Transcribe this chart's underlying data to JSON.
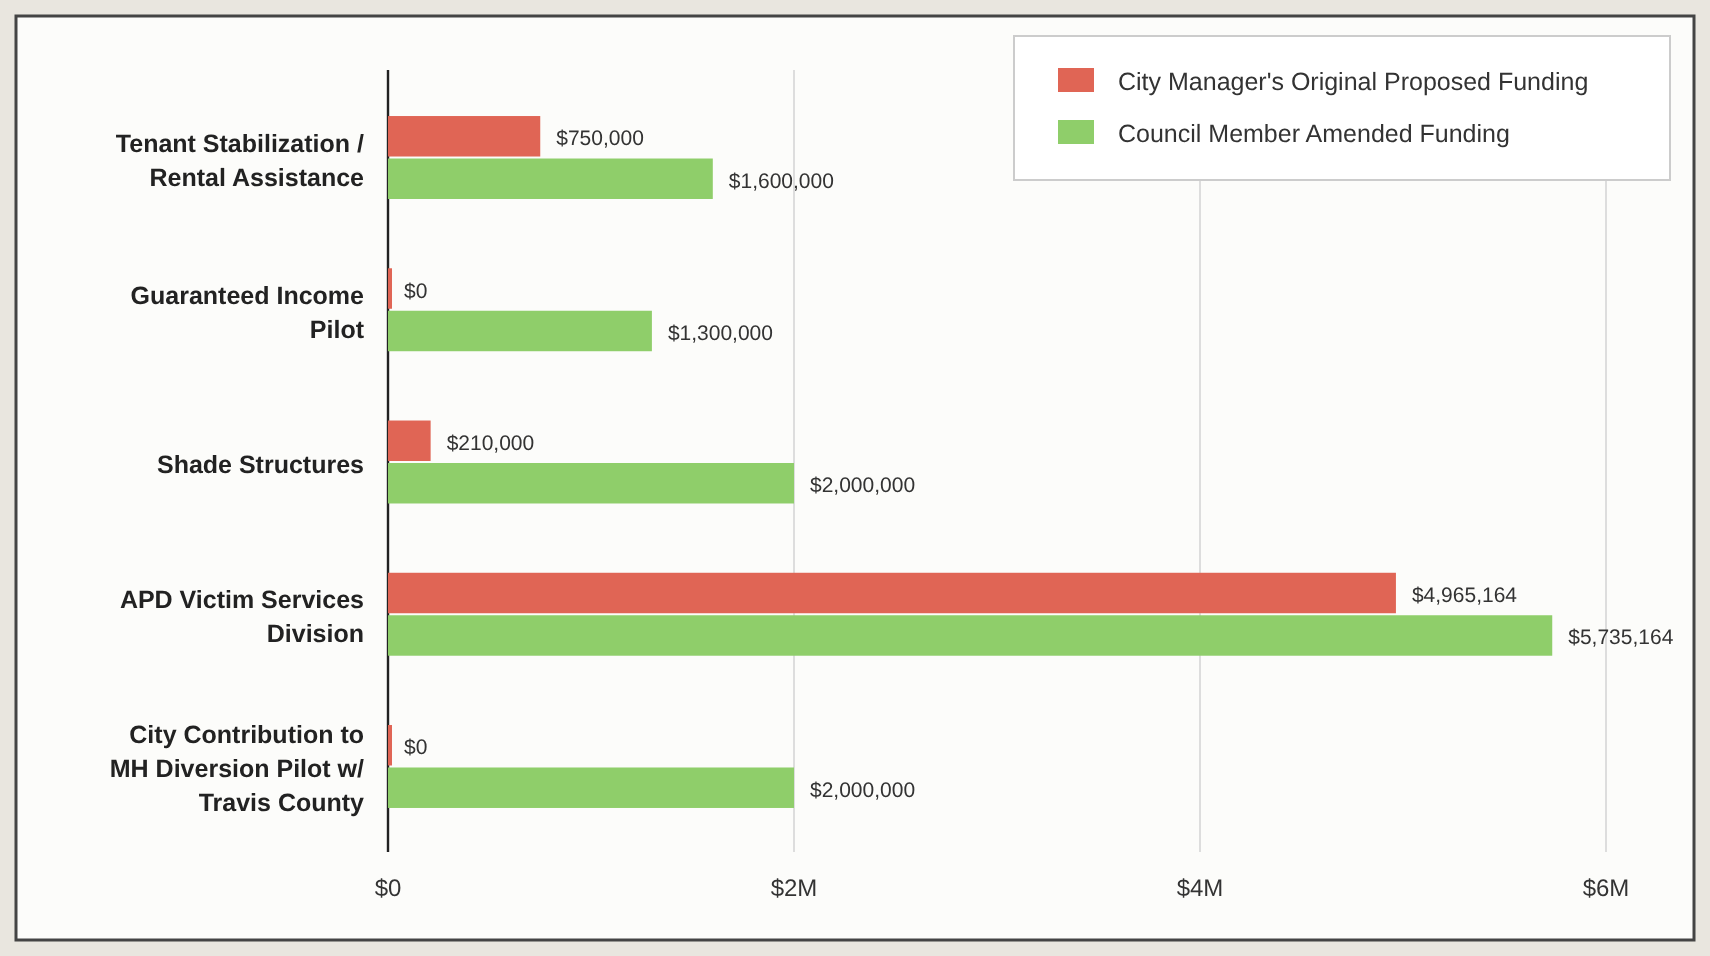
{
  "chart_data": {
    "type": "bar",
    "orientation": "horizontal",
    "categories": [
      "Tenant Stabilization / Rental Assistance",
      "Guaranteed Income Pilot",
      "Shade Structures",
      "APD Victim Services Division",
      "City Contribution to MH Diversion Pilot w/ Travis County"
    ],
    "series": [
      {
        "name": "City Manager's Original Proposed Funding",
        "color": "#e06555",
        "values": [
          750000,
          0,
          210000,
          4965164,
          0
        ],
        "value_labels": [
          "$750,000",
          "$0",
          "$210,000",
          "$4,965,164",
          "$0"
        ]
      },
      {
        "name": "Council Member Amended Funding",
        "color": "#8fce6a",
        "values": [
          1600000,
          1300000,
          2000000,
          5735164,
          2000000
        ],
        "value_labels": [
          "$1,600,000",
          "$1,300,000",
          "$2,000,000",
          "$5,735,164",
          "$2,000,000"
        ]
      }
    ],
    "xlim": [
      0,
      6000000
    ],
    "xticks": [
      {
        "value": 0,
        "label": "$0"
      },
      {
        "value": 2000000,
        "label": "$2M"
      },
      {
        "value": 4000000,
        "label": "$4M"
      },
      {
        "value": 6000000,
        "label": "$6M"
      }
    ],
    "grid": "x",
    "legend": "top right"
  }
}
